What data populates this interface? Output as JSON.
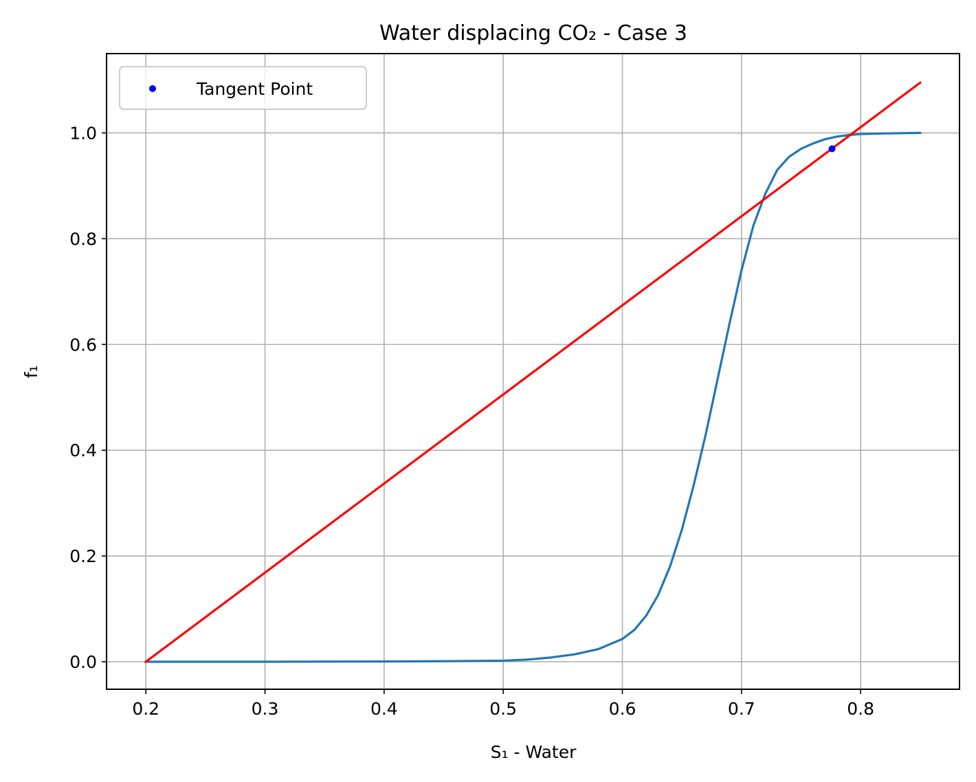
{
  "chart_data": {
    "type": "line",
    "title": "Water displacing CO₂ - Case 3",
    "xlabel": "S₁ - Water",
    "ylabel": "f₁",
    "xlim": [
      0.167,
      0.883
    ],
    "ylim": [
      -0.052,
      1.15
    ],
    "xticks": [
      0.2,
      0.3,
      0.4,
      0.5,
      0.6,
      0.7,
      0.8
    ],
    "yticks": [
      0.0,
      0.2,
      0.4,
      0.6,
      0.8,
      1.0
    ],
    "xtick_labels": [
      "0.2",
      "0.3",
      "0.4",
      "0.5",
      "0.6",
      "0.7",
      "0.8"
    ],
    "ytick_labels": [
      "0.0",
      "0.2",
      "0.4",
      "0.6",
      "0.8",
      "1.0"
    ],
    "grid": true,
    "legend": {
      "position": "upper left",
      "entries": [
        "Tangent Point"
      ]
    },
    "series": [
      {
        "name": "",
        "kind": "line",
        "color": "#1f77b4",
        "x": [
          0.2,
          0.3,
          0.4,
          0.45,
          0.5,
          0.52,
          0.54,
          0.56,
          0.58,
          0.6,
          0.61,
          0.62,
          0.63,
          0.64,
          0.65,
          0.66,
          0.67,
          0.68,
          0.69,
          0.7,
          0.71,
          0.72,
          0.73,
          0.74,
          0.75,
          0.76,
          0.77,
          0.78,
          0.79,
          0.8,
          0.82,
          0.85
        ],
        "y": [
          0.0,
          0.0,
          0.0005,
          0.001,
          0.002,
          0.004,
          0.008,
          0.014,
          0.024,
          0.043,
          0.06,
          0.087,
          0.126,
          0.18,
          0.25,
          0.335,
          0.43,
          0.535,
          0.64,
          0.74,
          0.825,
          0.885,
          0.93,
          0.955,
          0.97,
          0.98,
          0.988,
          0.993,
          0.996,
          0.998,
          0.999,
          1.0
        ]
      },
      {
        "name": "",
        "kind": "line",
        "color": "#ff0000",
        "x": [
          0.2,
          0.85
        ],
        "y": [
          0.0,
          1.095
        ]
      },
      {
        "name": "Tangent Point",
        "kind": "scatter",
        "color": "#0000ff",
        "x": [
          0.776
        ],
        "y": [
          0.97
        ]
      }
    ]
  }
}
